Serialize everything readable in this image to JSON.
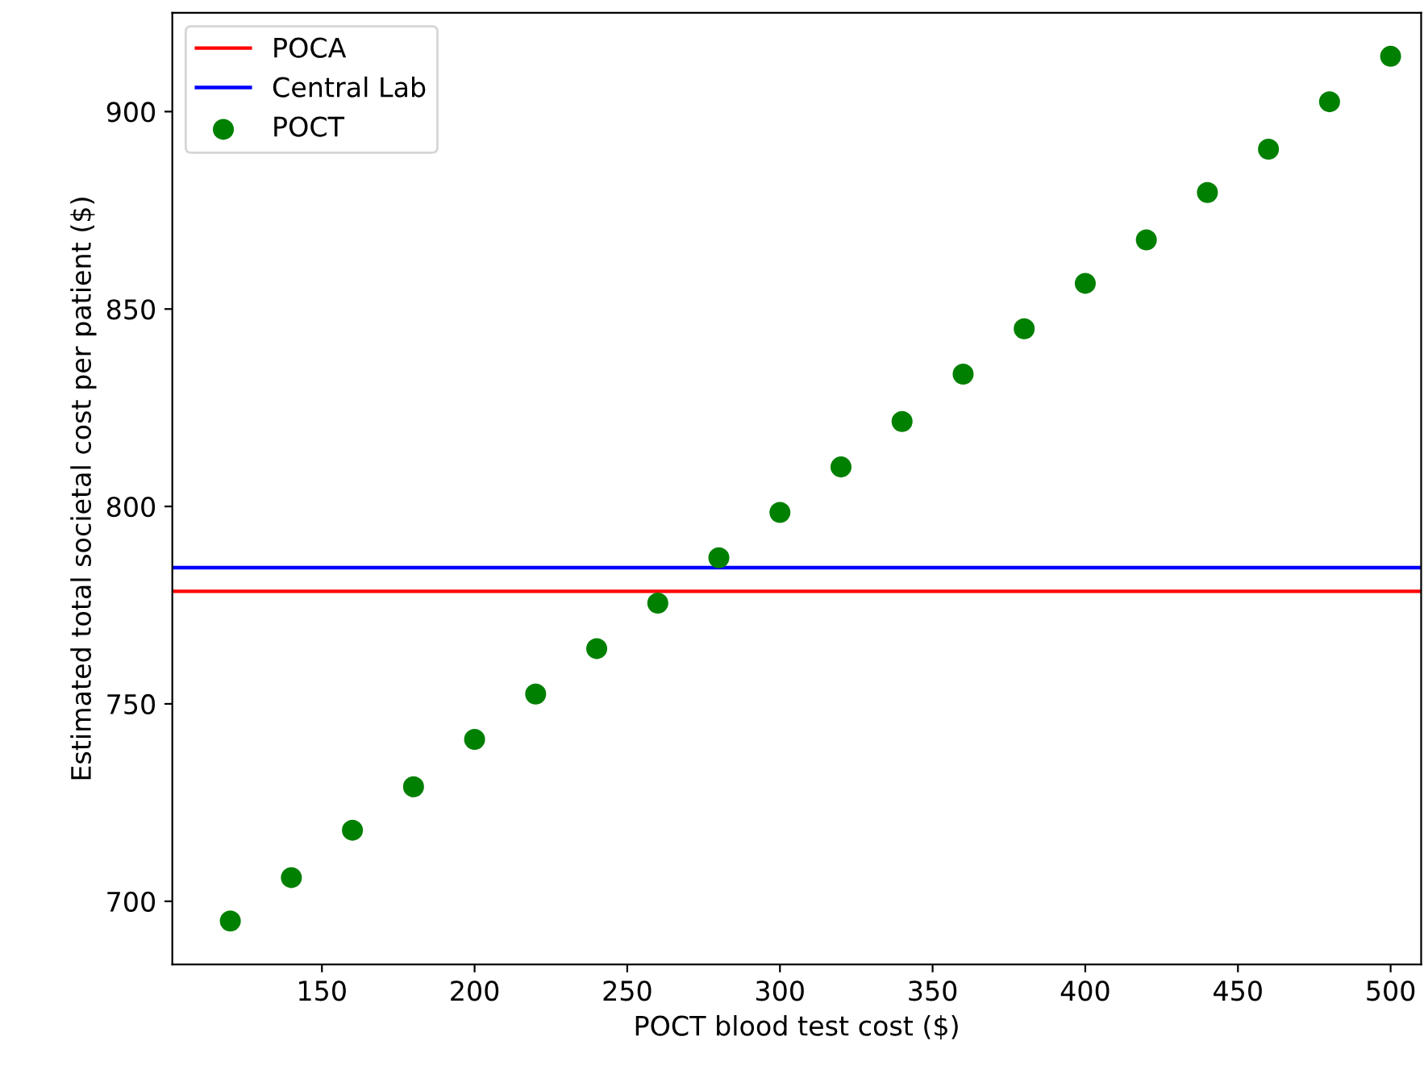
{
  "chart_data": {
    "type": "scatter",
    "xlabel": "POCT blood test cost ($)",
    "ylabel": "Estimated total societal cost per patient ($)",
    "x": [
      120,
      140,
      160,
      180,
      200,
      220,
      240,
      260,
      280,
      300,
      320,
      340,
      360,
      380,
      400,
      420,
      440,
      460,
      480,
      500
    ],
    "series": [
      {
        "name": "POCT",
        "color": "#008000",
        "values": [
          695,
          706,
          718,
          729,
          741,
          752.5,
          764,
          775.5,
          787,
          798.5,
          810,
          821.5,
          833.5,
          845,
          856.5,
          867.5,
          879.5,
          890.5,
          902.5,
          914
        ]
      }
    ],
    "ref_lines": [
      {
        "axis": "y",
        "value": 778.5,
        "label": "POCA",
        "color": "#ff0000",
        "line_style": "solid"
      },
      {
        "axis": "y",
        "value": 784.5,
        "label": "Central Lab",
        "color": "#0000ff",
        "line_style": "solid"
      }
    ],
    "xlim": [
      101,
      510
    ],
    "ylim": [
      684,
      925
    ],
    "xticks": [
      150,
      200,
      250,
      300,
      350,
      400,
      450,
      500
    ],
    "yticks": [
      700,
      750,
      800,
      850,
      900
    ],
    "marker": "circle",
    "legend": "top left",
    "grid": false
  }
}
